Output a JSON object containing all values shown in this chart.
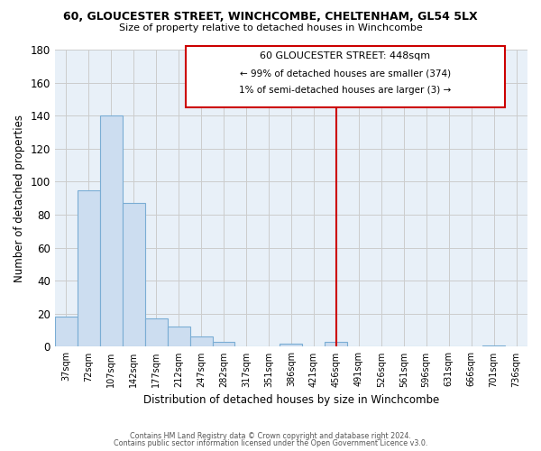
{
  "title": "60, GLOUCESTER STREET, WINCHCOMBE, CHELTENHAM, GL54 5LX",
  "subtitle": "Size of property relative to detached houses in Winchcombe",
  "xlabel": "Distribution of detached houses by size in Winchcombe",
  "ylabel": "Number of detached properties",
  "bar_labels": [
    "37sqm",
    "72sqm",
    "107sqm",
    "142sqm",
    "177sqm",
    "212sqm",
    "247sqm",
    "282sqm",
    "317sqm",
    "351sqm",
    "386sqm",
    "421sqm",
    "456sqm",
    "491sqm",
    "526sqm",
    "561sqm",
    "596sqm",
    "631sqm",
    "666sqm",
    "701sqm",
    "736sqm"
  ],
  "bar_values": [
    18,
    95,
    140,
    87,
    17,
    12,
    6,
    3,
    0,
    0,
    2,
    0,
    3,
    0,
    0,
    0,
    0,
    0,
    0,
    1,
    0
  ],
  "bar_color": "#ccddf0",
  "bar_edge_color": "#7aadd4",
  "ylim": [
    0,
    180
  ],
  "yticks": [
    0,
    20,
    40,
    60,
    80,
    100,
    120,
    140,
    160,
    180
  ],
  "vline_color": "#cc0000",
  "annotation_title": "60 GLOUCESTER STREET: 448sqm",
  "annotation_line1": "← 99% of detached houses are smaller (374)",
  "annotation_line2": "1% of semi-detached houses are larger (3) →",
  "footer_line1": "Contains HM Land Registry data © Crown copyright and database right 2024.",
  "footer_line2": "Contains public sector information licensed under the Open Government Licence v3.0.",
  "background_color": "#ffffff",
  "grid_color": "#cccccc"
}
